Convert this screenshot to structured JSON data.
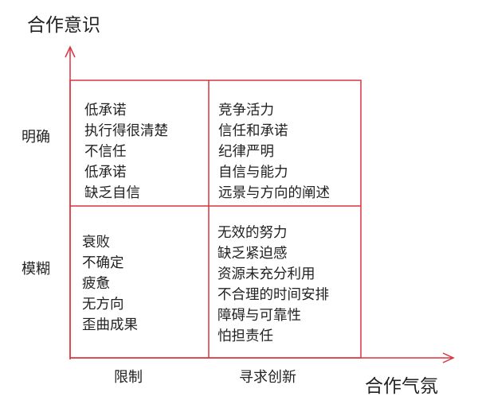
{
  "axes": {
    "y_title": "合作意识",
    "x_title": "合作气氛",
    "rows": [
      "明确",
      "模糊"
    ],
    "cols": [
      "限制",
      "寻求创新"
    ]
  },
  "quadrants": {
    "top_left": [
      "低承诺",
      "执行得很清楚",
      "不信任",
      "低承诺",
      "缺乏自信"
    ],
    "top_right": [
      "竞争活力",
      "信任和承诺",
      "纪律严明",
      "自信与能力",
      "远景与方向的阐述"
    ],
    "bottom_left": [
      "衰败",
      "不确定",
      "疲惫",
      "无方向",
      "歪曲成果"
    ],
    "bottom_right": [
      "无效的努力",
      "缺乏紧迫感",
      "资源未充分利用",
      "不合理的时间安排",
      "障碍与可靠性",
      "怕担责任"
    ]
  },
  "colors": {
    "lines": "#d9343f",
    "text": "#222222"
  }
}
